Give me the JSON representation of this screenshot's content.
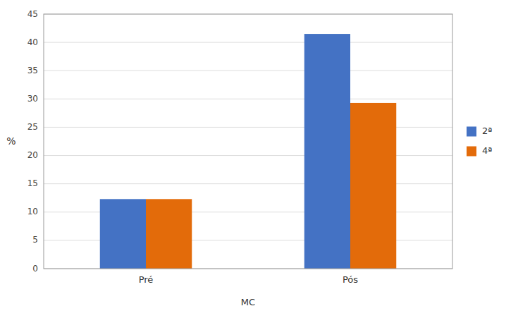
{
  "chart_data": {
    "type": "bar",
    "categories": [
      "Pré",
      "Pós"
    ],
    "series": [
      {
        "name": "2ª",
        "color": "#4472C4",
        "values": [
          12.3,
          41.5
        ]
      },
      {
        "name": "4ª",
        "color": "#E36B0A",
        "values": [
          12.3,
          29.3
        ]
      }
    ],
    "xlabel": "MC",
    "ylabel": "%",
    "ylim": [
      0,
      45
    ],
    "yticks": [
      0,
      5,
      10,
      15,
      20,
      25,
      30,
      35,
      40,
      45
    ],
    "grid": true,
    "legend": "right"
  }
}
